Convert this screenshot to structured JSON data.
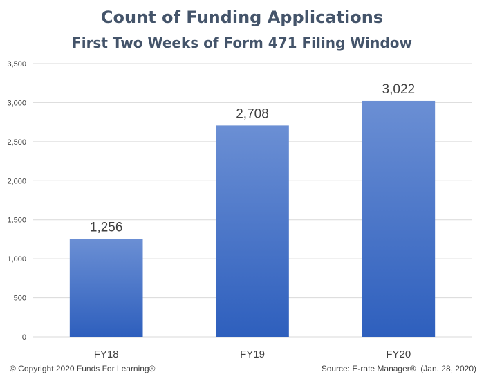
{
  "chart_data": {
    "type": "bar",
    "title": "Count of Funding Applications",
    "subtitle": "First Two Weeks of Form 471 Filing Window",
    "xlabel": "",
    "ylabel": "",
    "categories": [
      "FY18",
      "FY19",
      "FY20"
    ],
    "values": [
      1256,
      2708,
      3022
    ],
    "data_labels": [
      "1,256",
      "2,708",
      "3,022"
    ],
    "ylim": [
      0,
      3500
    ],
    "y_ticks": [
      0,
      500,
      1000,
      1500,
      2000,
      2500,
      3000,
      3500
    ],
    "y_tick_labels": [
      "0",
      "500",
      "1,000",
      "1,500",
      "2,000",
      "2,500",
      "3,000",
      "3,500"
    ],
    "grid": true,
    "legend": "none"
  },
  "footer": {
    "copyright": "© Copyright 2020 Funds For Learning®",
    "source": "Source: E-rate Manager®  (Jan. 28, 2020)"
  },
  "colors": {
    "title": "#44546a",
    "bar_top": "#6b8fd4",
    "bar_bottom": "#2e5fbd",
    "grid": "#d9d9d9",
    "text": "#404040"
  }
}
